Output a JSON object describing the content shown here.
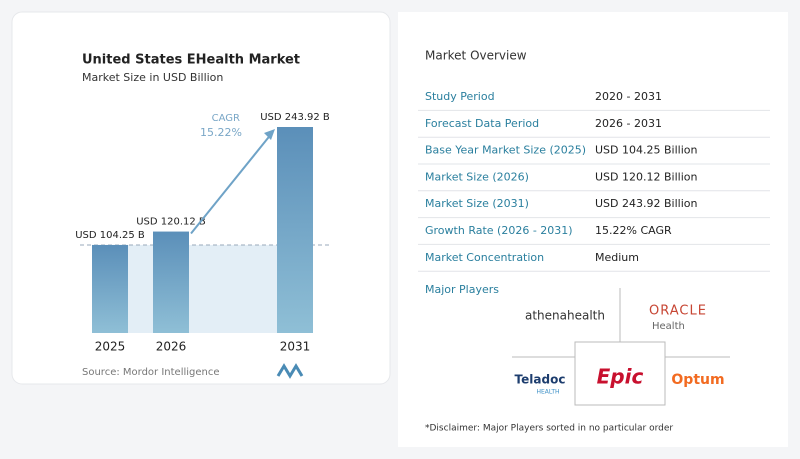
{
  "chart_data": {
    "type": "bar",
    "title": "United States EHealth Market",
    "subtitle": "Market Size in USD Billion",
    "categories": [
      "2025",
      "2026",
      "2031"
    ],
    "values": [
      104.25,
      120.12,
      243.92
    ],
    "value_labels": [
      "USD 104.25 B",
      "USD 120.12 B",
      "USD 243.92 B"
    ],
    "color": "#5b8fb9",
    "annotations": [
      "CAGR",
      "15.22%"
    ],
    "source": "Source: Mordor Intelligence"
  },
  "overview": {
    "title": "Market Overview",
    "rows": [
      [
        "Study Period",
        "2020 - 2031"
      ],
      [
        "Forecast Data Period",
        "2026 - 2031"
      ],
      [
        "Base Year Market Size (2025)",
        "USD 104.25 Billion"
      ],
      [
        "Market Size (2026)",
        "USD 120.12 Billion"
      ],
      [
        "Market Size (2031)",
        "USD 243.92 Billion"
      ],
      [
        "Growth Rate (2026 - 2031)",
        "15.22% CAGR"
      ],
      [
        "Market Concentration",
        "Medium"
      ]
    ],
    "players_title": "Major Players",
    "players": [
      "athenahealth",
      "ORACLE",
      "Health",
      "Teladoc",
      "HEALTH",
      "Epic",
      "Optum"
    ],
    "disclaimer": "*Disclaimer: Major Players sorted in no particular order"
  }
}
